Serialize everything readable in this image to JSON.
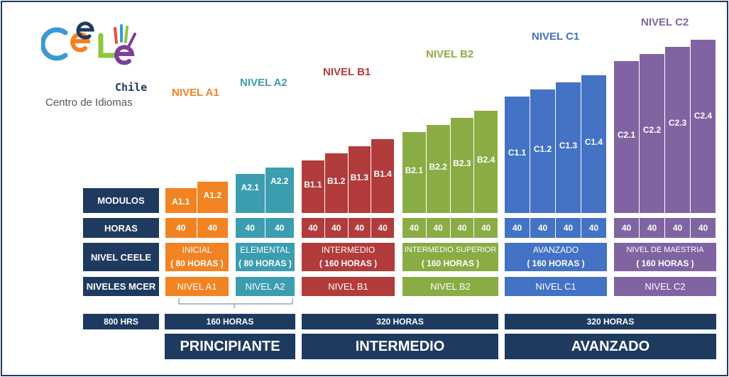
{
  "logo": {
    "wordmark": "CeLEe",
    "country": "Chile",
    "tagline": "Centro de Idiomas",
    "colors": [
      "#3a9ad9",
      "#f58220",
      "#8dc63f",
      "#e84c3d",
      "#7b3f98"
    ]
  },
  "row_labels": {
    "modulos": "MODULOS",
    "horas": "HORAS",
    "nivel_ceele": "NIVEL CEELE",
    "niveles_mcer": "NIVELES MCER",
    "total": "800 HRS"
  },
  "levels": [
    {
      "title": "NIVEL A1",
      "color": "#f28322",
      "modules": [
        "A1.1",
        "A1.2"
      ],
      "hours": [
        "40",
        "40"
      ],
      "ceele": "INICIAL",
      "ceele_hours": "( 80 HORAS )",
      "mcer": "NIVEL A1"
    },
    {
      "title": "NIVEL A2",
      "color": "#3c9db0",
      "modules": [
        "A2.1",
        "A2.2"
      ],
      "hours": [
        "40",
        "40"
      ],
      "ceele": "ELEMENTAL",
      "ceele_hours": "( 80 HORAS )",
      "mcer": "NIVEL A2"
    },
    {
      "title": "NIVEL B1",
      "color": "#b23b3b",
      "modules": [
        "B1.1",
        "B1.2",
        "B1.3",
        "B1.4"
      ],
      "hours": [
        "40",
        "40",
        "40",
        "40"
      ],
      "ceele": "INTERMEDIO",
      "ceele_hours": "( 160 HORAS )",
      "mcer": "NIVEL B1"
    },
    {
      "title": "NIVEL B2",
      "color": "#8aac45",
      "modules": [
        "B2.1",
        "B2.2",
        "B2.3",
        "B2.4"
      ],
      "hours": [
        "40",
        "40",
        "40",
        "40"
      ],
      "ceele": "INTERMEDIO SUPERIOR",
      "ceele_hours": "( 160 HORAS )",
      "mcer": "NIVEL B2"
    },
    {
      "title": "NIVEL C1",
      "color": "#4472c4",
      "modules": [
        "C1.1",
        "C1.2",
        "C1.3",
        "C1.4"
      ],
      "hours": [
        "40",
        "40",
        "40",
        "40"
      ],
      "ceele": "AVANZADO",
      "ceele_hours": "( 160 HORAS )",
      "mcer": "NIVEL C1"
    },
    {
      "title": "NIVEL C2",
      "color": "#8064a2",
      "modules": [
        "C2.1",
        "C2.2",
        "C2.3",
        "C2.4"
      ],
      "hours": [
        "40",
        "40",
        "40",
        "40"
      ],
      "ceele": "NIVEL DE MAESTRIA",
      "ceele_hours": "( 160 HORAS )",
      "mcer": "NIVEL C2"
    }
  ],
  "groups": [
    {
      "hours": "160 HORAS",
      "name": "PRINCIPIANTE"
    },
    {
      "hours": "320 HORAS",
      "name": "INTERMEDIO"
    },
    {
      "hours": "320 HORAS",
      "name": "AVANZADO"
    }
  ]
}
